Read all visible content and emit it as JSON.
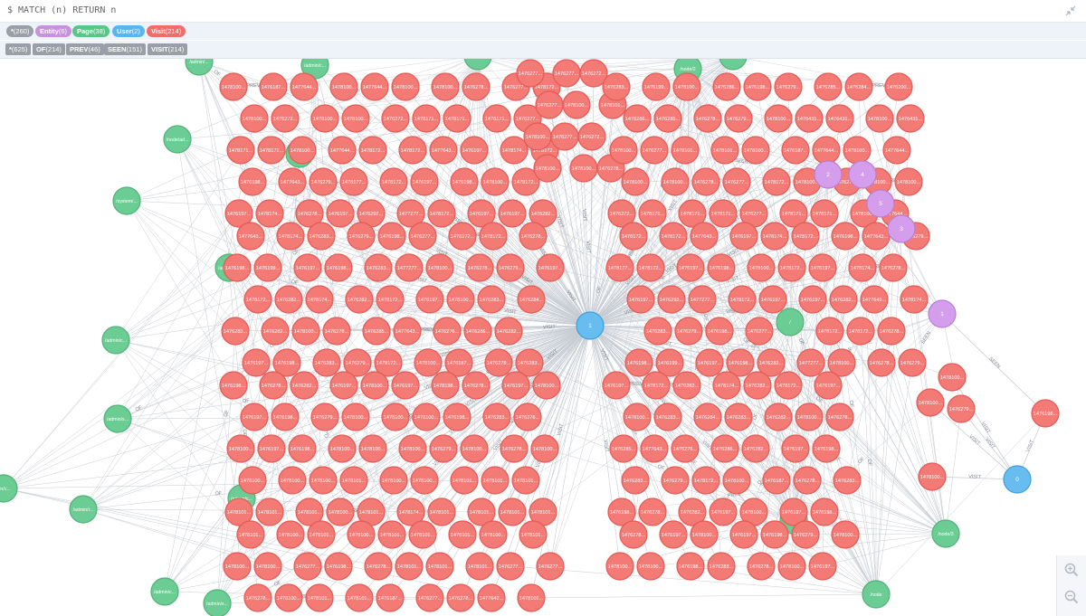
{
  "query": {
    "text": "$ MATCH (n) RETURN n"
  },
  "labels": [
    {
      "name": "*",
      "count": "(260)",
      "color": "#9a9ea6"
    },
    {
      "name": "Entity",
      "count": "(6)",
      "color": "#c990e0"
    },
    {
      "name": "Page",
      "count": "(38)",
      "color": "#57c785"
    },
    {
      "name": "User",
      "count": "(2)",
      "color": "#5ab4ee"
    },
    {
      "name": "Visit",
      "count": "(214)",
      "color": "#f06e6a"
    }
  ],
  "relationships": [
    {
      "name": "*",
      "count": "(625)"
    },
    {
      "name": "OF",
      "count": "(214)"
    },
    {
      "name": "PREV",
      "count": "(46)"
    },
    {
      "name": "SEEN",
      "count": "(151)"
    },
    {
      "name": "VISIT",
      "count": "(214)"
    }
  ],
  "colors": {
    "visit": "#f47a76",
    "visit_stroke": "#e45a55",
    "page": "#6bcd93",
    "page_stroke": "#4fb277",
    "user": "#68bdf0",
    "user_stroke": "#3e9fdc",
    "entity": "#d59eec",
    "entity_stroke": "#b97ed3",
    "edge": "#c7ccd3"
  },
  "icons": {
    "collapse": "collapse-icon",
    "zoom_in": "zoom-in-icon",
    "zoom_out": "zoom-out-icon"
  },
  "edge_labels": {
    "visit": "VISIT",
    "of": "OF",
    "seen": "SEEN",
    "prev": "PREV"
  },
  "users": [
    {
      "label": "1"
    },
    {
      "label": "0"
    }
  ],
  "entities": [
    {
      "label": "2"
    },
    {
      "label": "4"
    },
    {
      "label": "5"
    },
    {
      "label": "3"
    },
    {
      "label": "1"
    }
  ],
  "pages": [
    {
      "label": "/admin/..."
    },
    {
      "label": "/admin/c..."
    },
    {
      "label": "/node/ad..."
    },
    {
      "label": "/admin/c..."
    },
    {
      "label": "/system/..."
    },
    {
      "label": "/admin/c..."
    },
    {
      "label": "/admin/c..."
    },
    {
      "label": "/admin/s..."
    },
    {
      "label": "/admin/c..."
    },
    {
      "label": "/admin/r..."
    },
    {
      "label": "/admin/c..."
    },
    {
      "label": "/admin/s..."
    },
    {
      "label": "nin/c..."
    },
    {
      "label": "/node/2"
    },
    {
      "label": "/"
    },
    {
      "label": "/node/1"
    },
    {
      "label": "/node/3"
    },
    {
      "label": "/node"
    }
  ],
  "visits": [
    "1478100...",
    "1476187...",
    "1477644...",
    "1478100...",
    "1477644...",
    "1478100...",
    "1478100...",
    "1476278...",
    "1476277...",
    "1478172...",
    "1478100...",
    "1476272...",
    "1478100...",
    "1478100...",
    "1476272...",
    "1478171...",
    "1478171...",
    "1478171...",
    "1476277...",
    "1478171...",
    "1478171...",
    "1478100...",
    "1477644...",
    "1478172...",
    "1478172...",
    "1477643...",
    "1476197...",
    "1478174...",
    "1478172...",
    "1476198...",
    "1477643...",
    "1476279...",
    "1478177...",
    "1478172...",
    "1476197...",
    "1476198...",
    "1478100...",
    "1478172...",
    "1476197...",
    "1478174...",
    "1476278...",
    "1476197...",
    "1476292...",
    "1477277...",
    "1478172...",
    "1476197...",
    "1476197...",
    "1476282...",
    "1477643...",
    "1478174...",
    "1476283...",
    "1476279...",
    "1476198...",
    "1476277...",
    "1478172...",
    "1478172...",
    "1476278...",
    "1476198...",
    "1476199...",
    "1476197...",
    "1476198...",
    "1476283...",
    "1477277...",
    "1478100...",
    "1476278...",
    "1476279...",
    "1476197...",
    "1478172...",
    "1476282...",
    "1478174...",
    "1476282...",
    "1478172...",
    "1476197...",
    "1478100...",
    "1476283...",
    "1476284...",
    "1476283...",
    "1476282...",
    "1478100...",
    "1476278...",
    "1476285...",
    "1477643...",
    "1476276...",
    "1476286...",
    "1476282...",
    "1476197...",
    "1476198...",
    "1476283...",
    "1476279...",
    "1478172...",
    "1478100...",
    "1476187...",
    "1476278...",
    "1476283...",
    "1476198...",
    "1476278...",
    "1476282...",
    "1476197...",
    "1478100...",
    "1476197...",
    "1478198...",
    "1476278...",
    "1476197...",
    "1478100...",
    "1476197...",
    "1476198...",
    "1476279...",
    "1478100...",
    "1478100...",
    "1478100...",
    "1476198...",
    "1476283...",
    "1476278...",
    "1478100...",
    "1476197...",
    "1476198...",
    "1478100...",
    "1478100...",
    "1478100...",
    "1476279...",
    "1478100...",
    "1476278...",
    "1478100...",
    "1478100...",
    "1478100...",
    "1478100...",
    "1478101...",
    "1478100...",
    "1478100...",
    "1478101...",
    "1478101...",
    "1478101...",
    "1478101...",
    "1478101...",
    "1478101...",
    "1478100...",
    "1478101...",
    "1478174...",
    "1478101...",
    "1478101...",
    "1478101...",
    "1478101...",
    "1478101...",
    "1478100...",
    "1478101...",
    "1478100...",
    "1478101...",
    "1478101...",
    "1478101...",
    "1478100...",
    "1478101...",
    "1478100...",
    "1478100...",
    "1476277...",
    "1476198...",
    "1476278...",
    "1478101...",
    "1478101...",
    "1478101...",
    "1476277...",
    "1476277...",
    "1476278...",
    "1478100...",
    "1478101...",
    "1478101...",
    "1476187...",
    "1476277...",
    "1476278...",
    "1477642...",
    "1478101...",
    "1476277...",
    "1476277...",
    "1476272...",
    "1476277...",
    "1478100...",
    "1478101...",
    "1478100...",
    "1476277...",
    "1476272...",
    "1478100...",
    "1478100...",
    "1476278...",
    "1476283...",
    "1476199...",
    "1478100...",
    "1476286...",
    "1476198...",
    "1476279...",
    "1476285...",
    "1476284...",
    "1476200...",
    "1476286...",
    "1476285...",
    "1476278...",
    "1476279...",
    "1478100...",
    "1476431...",
    "1476431...",
    "1478100...",
    "1476431...",
    "1478100...",
    "1476277...",
    "1478101...",
    "1478101..."
  ],
  "zoom": {
    "in_title": "Zoom in",
    "out_title": "Zoom out"
  }
}
